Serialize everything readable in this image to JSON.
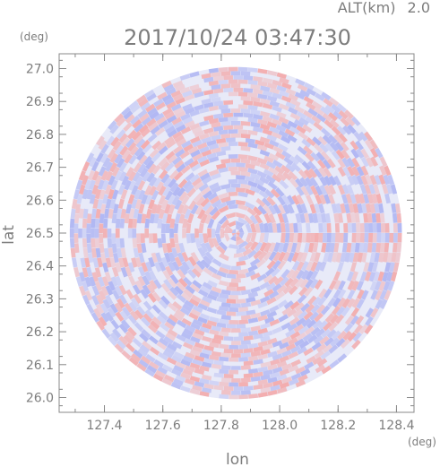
{
  "header": {
    "altitude_label": "ALT(km)",
    "altitude_value": "2.0",
    "timestamp": "2017/10/24 03:47:30"
  },
  "axes": {
    "x_label": "lon",
    "y_label": "lat",
    "x_unit": "(deg)",
    "y_unit": "(deg)",
    "x_ticks": [
      "127.4",
      "127.6",
      "127.8",
      "128.0",
      "128.2",
      "128.4"
    ],
    "y_ticks": [
      "27.0",
      "26.9",
      "26.8",
      "26.7",
      "26.6",
      "26.5",
      "26.4",
      "26.3",
      "26.2",
      "26.1",
      "26.0"
    ]
  },
  "map": {
    "lon_range": [
      127.245,
      128.46
    ],
    "lat_range": [
      25.955,
      27.045
    ],
    "center": {
      "lon": 127.85,
      "lat": 26.5
    },
    "radius_deg_lat": 0.505,
    "colors": {
      "positive": "#f4a6a6",
      "negative": "#aab1f2",
      "neutral": "#e8eaf8",
      "frame": "#888888"
    }
  }
}
